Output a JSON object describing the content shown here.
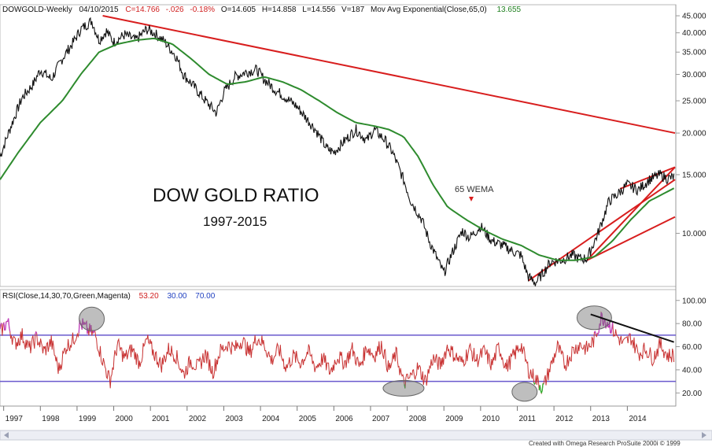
{
  "header": {
    "symbol": "DOWGOLD-Weekly",
    "date": "04/10/2015",
    "close": "C=14.766",
    "change": "-.026",
    "change_pct": "-0.18%",
    "open": "O=14.605",
    "high": "H=14.858",
    "low": "L=14.556",
    "volume": "V=187",
    "indicator_name": "Mov Avg Exponential(Close,65,0)",
    "indicator_value": "13.655"
  },
  "rsi_header": {
    "name": "RSI(Close,14,30,70,Green,Magenta)",
    "value": "53.20",
    "low": "30.00",
    "high": "70.00"
  },
  "annotations": {
    "title": "DOW GOLD RATIO",
    "subtitle": "1997-2015",
    "wema_label": "65 WEMA"
  },
  "credit": "Created with Omega Research ProSuite 2000i © 1999",
  "colors": {
    "price": "#111111",
    "ma": "#2e8b2e",
    "trend": "#d81e1e",
    "rsi": "#c83232",
    "rsi_over": "#c040c0",
    "rsi_under": "#30b030",
    "rsi_band": "#6a5acd",
    "header_red": "#d02020",
    "header_green": "#208020",
    "header_blue": "#2040c0"
  },
  "chart_data": [
    {
      "type": "line",
      "title": "DOW GOLD RATIO",
      "subtitle": "1997-2015",
      "x_ticks": [
        "1997",
        "1998",
        "1999",
        "2000",
        "2001",
        "2002",
        "2003",
        "2004",
        "2005",
        "2006",
        "2007",
        "2008",
        "2009",
        "2010",
        "2011",
        "2012",
        "2013",
        "2014"
      ],
      "y_scale": "log",
      "ylim": [
        7.0,
        46.0
      ],
      "y_ticks": [
        "45.000",
        "40.000",
        "35.000",
        "30.000",
        "25.000",
        "20.000",
        "15.000",
        "10.000"
      ],
      "series": [
        {
          "kind": "price",
          "x": [
            1996.9,
            1997.2,
            1997.5,
            1997.8,
            1998.0,
            1998.3,
            1998.6,
            1998.9,
            1999.1,
            1999.4,
            1999.6,
            1999.8,
            2000.0,
            2000.3,
            2000.6,
            2000.9,
            2001.1,
            2001.4,
            2001.7,
            2001.9,
            2002.2,
            2002.5,
            2002.8,
            2003.0,
            2003.3,
            2003.6,
            2003.9,
            2004.1,
            2004.4,
            2004.7,
            2005.0,
            2005.2,
            2005.5,
            2005.8,
            2006.0,
            2006.3,
            2006.6,
            2006.9,
            2007.1,
            2007.4,
            2007.6,
            2007.9,
            2008.1,
            2008.4,
            2008.6,
            2008.9,
            2009.0,
            2009.2,
            2009.5,
            2009.7,
            2010.0,
            2010.3,
            2010.6,
            2010.9,
            2011.1,
            2011.3,
            2011.5,
            2011.7,
            2011.9,
            2012.2,
            2012.5,
            2012.7,
            2012.9,
            2013.2,
            2013.5,
            2013.7,
            2014.0,
            2014.3,
            2014.6,
            2014.9,
            2015.1,
            2015.27
          ],
          "y": [
            17.0,
            21.0,
            25.5,
            28.0,
            31.0,
            29.0,
            33.5,
            37.5,
            41.0,
            43.5,
            38.0,
            40.5,
            37.5,
            39.5,
            38.0,
            41.0,
            40.0,
            37.5,
            34.0,
            30.0,
            27.5,
            25.0,
            23.0,
            26.5,
            29.5,
            30.5,
            31.0,
            29.0,
            27.0,
            25.5,
            24.0,
            22.5,
            20.5,
            18.0,
            17.5,
            19.0,
            20.5,
            19.0,
            20.5,
            19.0,
            17.5,
            14.5,
            12.5,
            11.0,
            9.5,
            8.0,
            7.6,
            8.6,
            10.2,
            9.7,
            10.5,
            9.5,
            9.2,
            8.8,
            8.6,
            7.4,
            7.1,
            7.6,
            8.2,
            8.3,
            8.6,
            8.4,
            8.4,
            10.0,
            12.5,
            13.0,
            14.0,
            13.5,
            14.5,
            15.0,
            14.6,
            14.766
          ]
        },
        {
          "kind": "ema",
          "name": "Mov Avg Exponential(Close,65,0)",
          "x": [
            1996.9,
            1997.4,
            1998.0,
            1998.6,
            1999.1,
            1999.6,
            2000.1,
            2000.6,
            2001.1,
            2001.6,
            2002.1,
            2002.6,
            2003.1,
            2003.6,
            2004.1,
            2004.6,
            2005.1,
            2005.6,
            2006.1,
            2006.6,
            2007.1,
            2007.5,
            2007.9,
            2008.3,
            2008.7,
            2009.1,
            2009.6,
            2010.1,
            2010.6,
            2011.1,
            2011.6,
            2012.1,
            2012.6,
            2013.1,
            2013.6,
            2014.1,
            2014.6,
            2015.27
          ],
          "y": [
            14.5,
            17.5,
            21.5,
            25.0,
            30.0,
            35.0,
            37.0,
            38.0,
            38.5,
            37.0,
            33.5,
            30.0,
            28.0,
            28.5,
            29.5,
            28.5,
            27.0,
            25.0,
            23.0,
            21.5,
            21.0,
            20.5,
            19.5,
            17.0,
            14.0,
            12.0,
            11.0,
            10.2,
            9.6,
            9.2,
            8.6,
            8.3,
            8.3,
            8.5,
            9.5,
            11.0,
            12.5,
            13.655
          ]
        }
      ],
      "trendlines": [
        {
          "x": [
            1999.7,
            2015.3
          ],
          "y": [
            45.0,
            20.0
          ]
        },
        {
          "x": [
            2011.3,
            2015.3
          ],
          "y": [
            7.2,
            14.5
          ]
        },
        {
          "x": [
            2012.9,
            2015.3
          ],
          "y": [
            8.3,
            15.8
          ]
        },
        {
          "x": [
            2012.9,
            2015.3
          ],
          "y": [
            8.3,
            11.2
          ]
        },
        {
          "x": [
            2013.8,
            2015.3
          ],
          "y": [
            13.6,
            15.8
          ]
        }
      ],
      "annotations": [
        "65 WEMA"
      ]
    },
    {
      "type": "line",
      "title": "RSI(Close,14,30,70,Green,Magenta)",
      "ylim": [
        10,
        108
      ],
      "y_ticks": [
        "100.00",
        "80.00",
        "60.00",
        "40.00",
        "20.00"
      ],
      "bands": [
        30,
        70
      ],
      "x": [
        1996.9,
        1997.1,
        1997.3,
        1997.5,
        1997.7,
        1997.9,
        1998.1,
        1998.3,
        1998.5,
        1998.7,
        1998.9,
        1999.1,
        1999.3,
        1999.5,
        1999.7,
        1999.9,
        2000.1,
        2000.3,
        2000.5,
        2000.7,
        2000.9,
        2001.1,
        2001.3,
        2001.5,
        2001.7,
        2001.9,
        2002.1,
        2002.3,
        2002.5,
        2002.7,
        2002.9,
        2003.1,
        2003.3,
        2003.5,
        2003.7,
        2003.9,
        2004.1,
        2004.3,
        2004.5,
        2004.7,
        2004.9,
        2005.1,
        2005.3,
        2005.5,
        2005.7,
        2005.9,
        2006.1,
        2006.3,
        2006.5,
        2006.7,
        2006.9,
        2007.1,
        2007.3,
        2007.5,
        2007.7,
        2007.9,
        2008.1,
        2008.3,
        2008.5,
        2008.7,
        2008.9,
        2009.1,
        2009.3,
        2009.5,
        2009.7,
        2009.9,
        2010.1,
        2010.3,
        2010.5,
        2010.7,
        2010.9,
        2011.1,
        2011.3,
        2011.5,
        2011.7,
        2011.9,
        2012.1,
        2012.3,
        2012.5,
        2012.7,
        2012.9,
        2013.1,
        2013.3,
        2013.5,
        2013.7,
        2013.9,
        2014.1,
        2014.3,
        2014.5,
        2014.7,
        2014.9,
        2015.1,
        2015.27
      ],
      "y": [
        72,
        82,
        62,
        70,
        58,
        68,
        56,
        64,
        40,
        60,
        66,
        80,
        74,
        70,
        48,
        30,
        62,
        50,
        58,
        46,
        66,
        54,
        44,
        58,
        52,
        36,
        48,
        42,
        54,
        38,
        56,
        62,
        58,
        66,
        54,
        68,
        62,
        48,
        58,
        42,
        52,
        46,
        56,
        42,
        50,
        38,
        52,
        46,
        58,
        42,
        60,
        52,
        62,
        40,
        54,
        28,
        34,
        42,
        30,
        50,
        44,
        60,
        52,
        46,
        58,
        48,
        56,
        44,
        60,
        42,
        52,
        62,
        40,
        32,
        24,
        42,
        60,
        44,
        56,
        62,
        58,
        66,
        86,
        80,
        70,
        62,
        68,
        54,
        58,
        50,
        62,
        52,
        53.2
      ]
    }
  ]
}
